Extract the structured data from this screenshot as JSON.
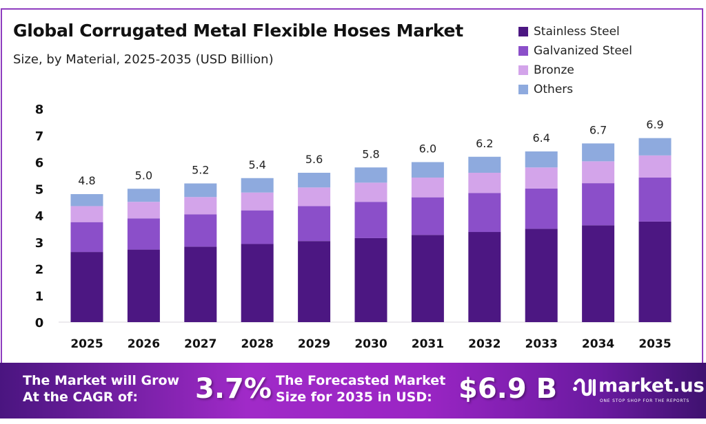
{
  "header": {
    "title": "Global Corrugated Metal Flexible Hoses Market",
    "subtitle": "Size, by Material, 2025-2035 (USD Billion)"
  },
  "legend": [
    {
      "label": "Stainless Steel",
      "color": "#4c1782"
    },
    {
      "label": "Galvanized Steel",
      "color": "#8b4fc9"
    },
    {
      "label": "Bronze",
      "color": "#d3a4ea"
    },
    {
      "label": "Others",
      "color": "#8eaade"
    }
  ],
  "chart_data": {
    "type": "bar",
    "stacked": true,
    "title": "Global Corrugated Metal Flexible Hoses Market",
    "subtitle": "Size, by Material, 2025-2035 (USD Billion)",
    "xlabel": "",
    "ylabel": "USD Billion",
    "ylim": [
      0,
      8
    ],
    "yticks": [
      0,
      1,
      2,
      3,
      4,
      5,
      6,
      7,
      8
    ],
    "grid": false,
    "legend_position": "top-right",
    "categories": [
      "2025",
      "2026",
      "2027",
      "2028",
      "2029",
      "2030",
      "2031",
      "2032",
      "2033",
      "2034",
      "2035"
    ],
    "totals": [
      4.8,
      5.0,
      5.2,
      5.4,
      5.6,
      5.8,
      6.0,
      6.2,
      6.4,
      6.7,
      6.9
    ],
    "total_labels": [
      "4.8",
      "5.0",
      "5.2",
      "5.4",
      "5.6",
      "5.8",
      "6.0",
      "6.2",
      "6.4",
      "6.7",
      "6.9"
    ],
    "series": [
      {
        "name": "Stainless Steel",
        "color": "#4c1782",
        "values": [
          2.63,
          2.72,
          2.83,
          2.93,
          3.04,
          3.15,
          3.27,
          3.38,
          3.5,
          3.63,
          3.77
        ]
      },
      {
        "name": "Galvanized Steel",
        "color": "#8b4fc9",
        "values": [
          1.12,
          1.17,
          1.21,
          1.26,
          1.31,
          1.36,
          1.41,
          1.46,
          1.51,
          1.58,
          1.65
        ]
      },
      {
        "name": "Bronze",
        "color": "#d3a4ea",
        "values": [
          0.6,
          0.62,
          0.65,
          0.67,
          0.7,
          0.72,
          0.74,
          0.76,
          0.79,
          0.82,
          0.83
        ]
      },
      {
        "name": "Others",
        "color": "#8eaade",
        "values": [
          0.45,
          0.49,
          0.51,
          0.54,
          0.55,
          0.57,
          0.58,
          0.6,
          0.6,
          0.67,
          0.65
        ]
      }
    ]
  },
  "footer": {
    "cagr_label_line1": "The Market will Grow",
    "cagr_label_line2": "At the CAGR of:",
    "cagr_value": "3.7%",
    "forecast_label_line1": "The Forecasted Market",
    "forecast_label_line2": "Size for 2035 in USD:",
    "forecast_value": "$6.9 B",
    "brand_name": "market.us",
    "brand_tagline": "ONE STOP SHOP FOR THE REPORTS"
  }
}
